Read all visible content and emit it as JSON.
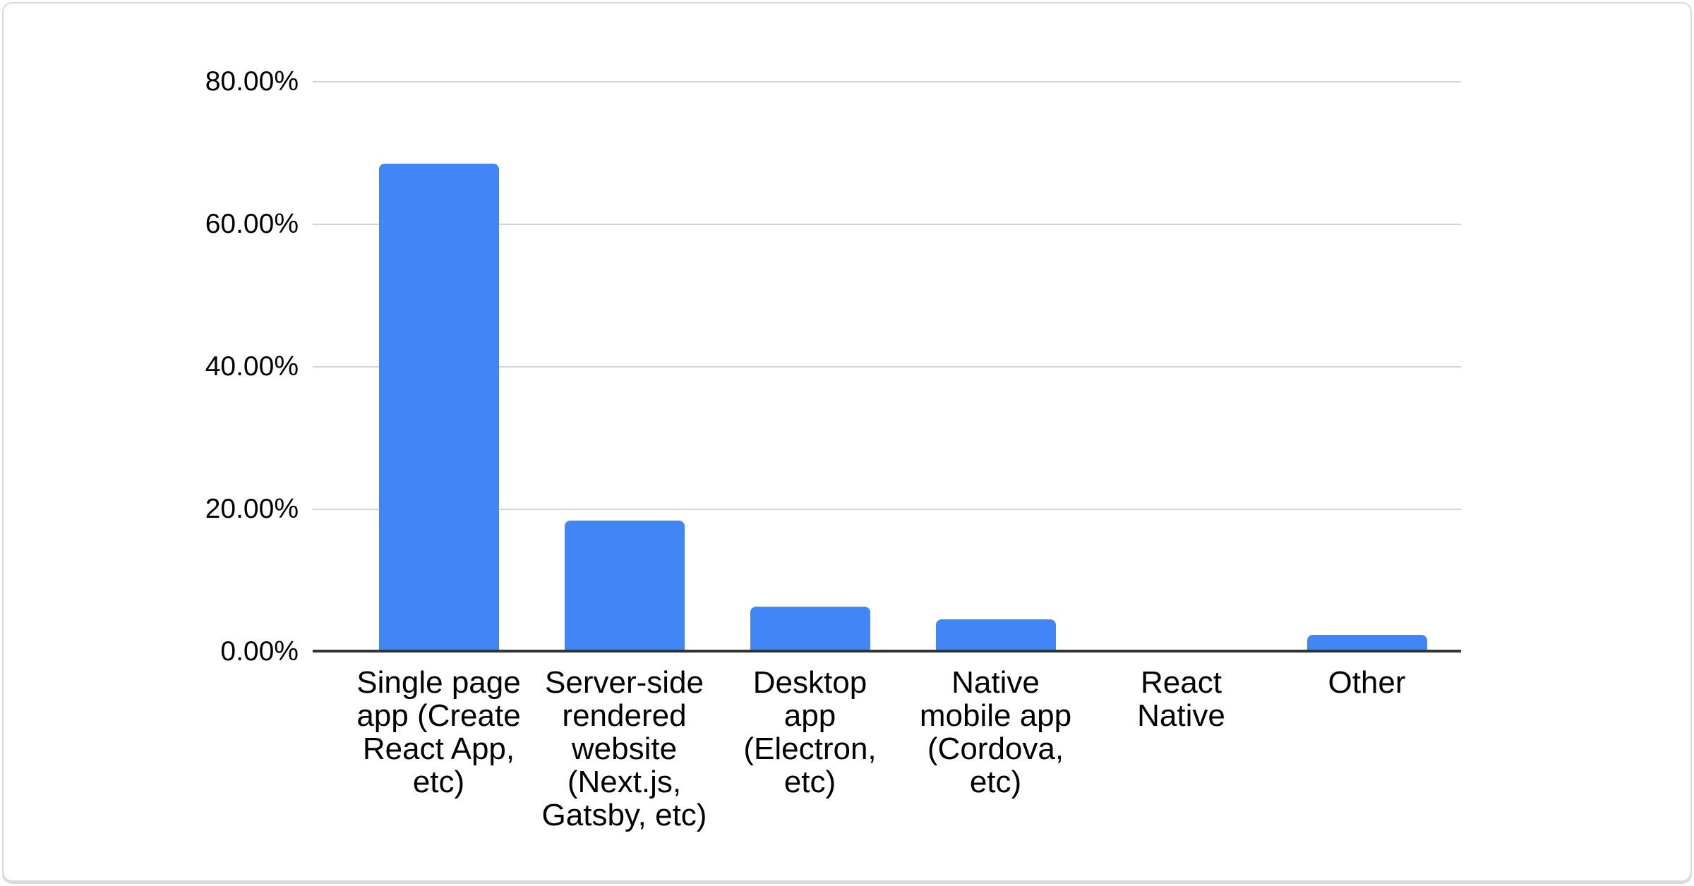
{
  "chart_data": {
    "type": "bar",
    "categories": [
      "Single page app (Create React App, etc)",
      "Server-side rendered website (Next.js, Gatsby, etc)",
      "Desktop app (Electron, etc)",
      "Native mobile app (Cordova, etc)",
      "React Native",
      "Other"
    ],
    "values": [
      68.5,
      18.4,
      6.3,
      4.6,
      0,
      2.4
    ],
    "y_ticks": [
      {
        "value": 0,
        "label": "0.00%"
      },
      {
        "value": 20,
        "label": "20.00%"
      },
      {
        "value": 40,
        "label": "40.00%"
      },
      {
        "value": 60,
        "label": "60.00%"
      },
      {
        "value": 80,
        "label": "80.00%"
      }
    ],
    "ylim": [
      0,
      80
    ],
    "grid": true,
    "legend": "none",
    "bar_color": "#4285f4"
  },
  "colors": {
    "bar": "#4285f4",
    "axis_line": "#333333",
    "gridline": "#d5d5d5",
    "label_text": "#000000",
    "card_border": "#d9dadd",
    "background": "#ffffff"
  }
}
